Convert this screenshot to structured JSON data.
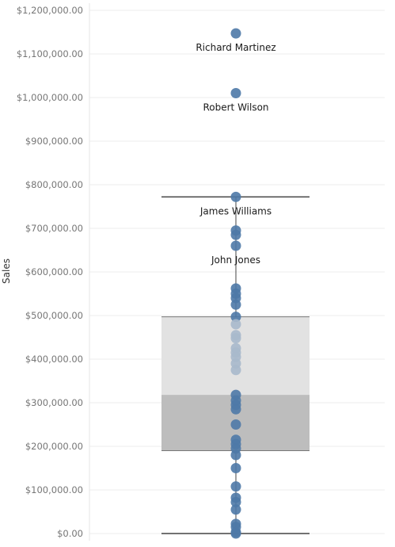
{
  "chart_data": {
    "type": "box",
    "ylabel": "Sales",
    "ylim": [
      0,
      1200000
    ],
    "yticks": [
      0,
      100000,
      200000,
      300000,
      400000,
      500000,
      600000,
      700000,
      800000,
      900000,
      1000000,
      1100000,
      1200000
    ],
    "ytick_labels": [
      "$0.00",
      "$100,000.00",
      "$200,000.00",
      "$300,000.00",
      "$400,000.00",
      "$500,000.00",
      "$600,000.00",
      "$700,000.00",
      "$800,000.00",
      "$900,000.00",
      "$1,000,000.00",
      "$1,100,000.00",
      "$1,200,000.00"
    ],
    "grid": true,
    "box": {
      "whisker_low": 0,
      "q1": 190000,
      "median": 318000,
      "q3": 497000,
      "whisker_high": 772000
    },
    "points": [
      1147000,
      1010000,
      772000,
      695000,
      685000,
      660000,
      562000,
      550000,
      540000,
      525000,
      497000,
      480000,
      455000,
      448000,
      425000,
      415000,
      405000,
      390000,
      375000,
      318000,
      305000,
      295000,
      285000,
      250000,
      215000,
      205000,
      195000,
      180000,
      150000,
      108000,
      82000,
      72000,
      55000,
      22000,
      15000,
      3000,
      0
    ],
    "labeled_points": [
      {
        "name": "Richard Martinez",
        "value": 1147000
      },
      {
        "name": "Robert Wilson",
        "value": 1010000
      },
      {
        "name": "James Williams",
        "value": 772000
      },
      {
        "name": "John Jones",
        "value": 660000
      }
    ],
    "colors": {
      "point": "#4e79a7",
      "point_in_box": "#a9b9cc",
      "box_upper": "#e2e2e2",
      "box_lower": "#bdbdbd",
      "whisker": "#444444",
      "grid": "#ececec"
    }
  }
}
